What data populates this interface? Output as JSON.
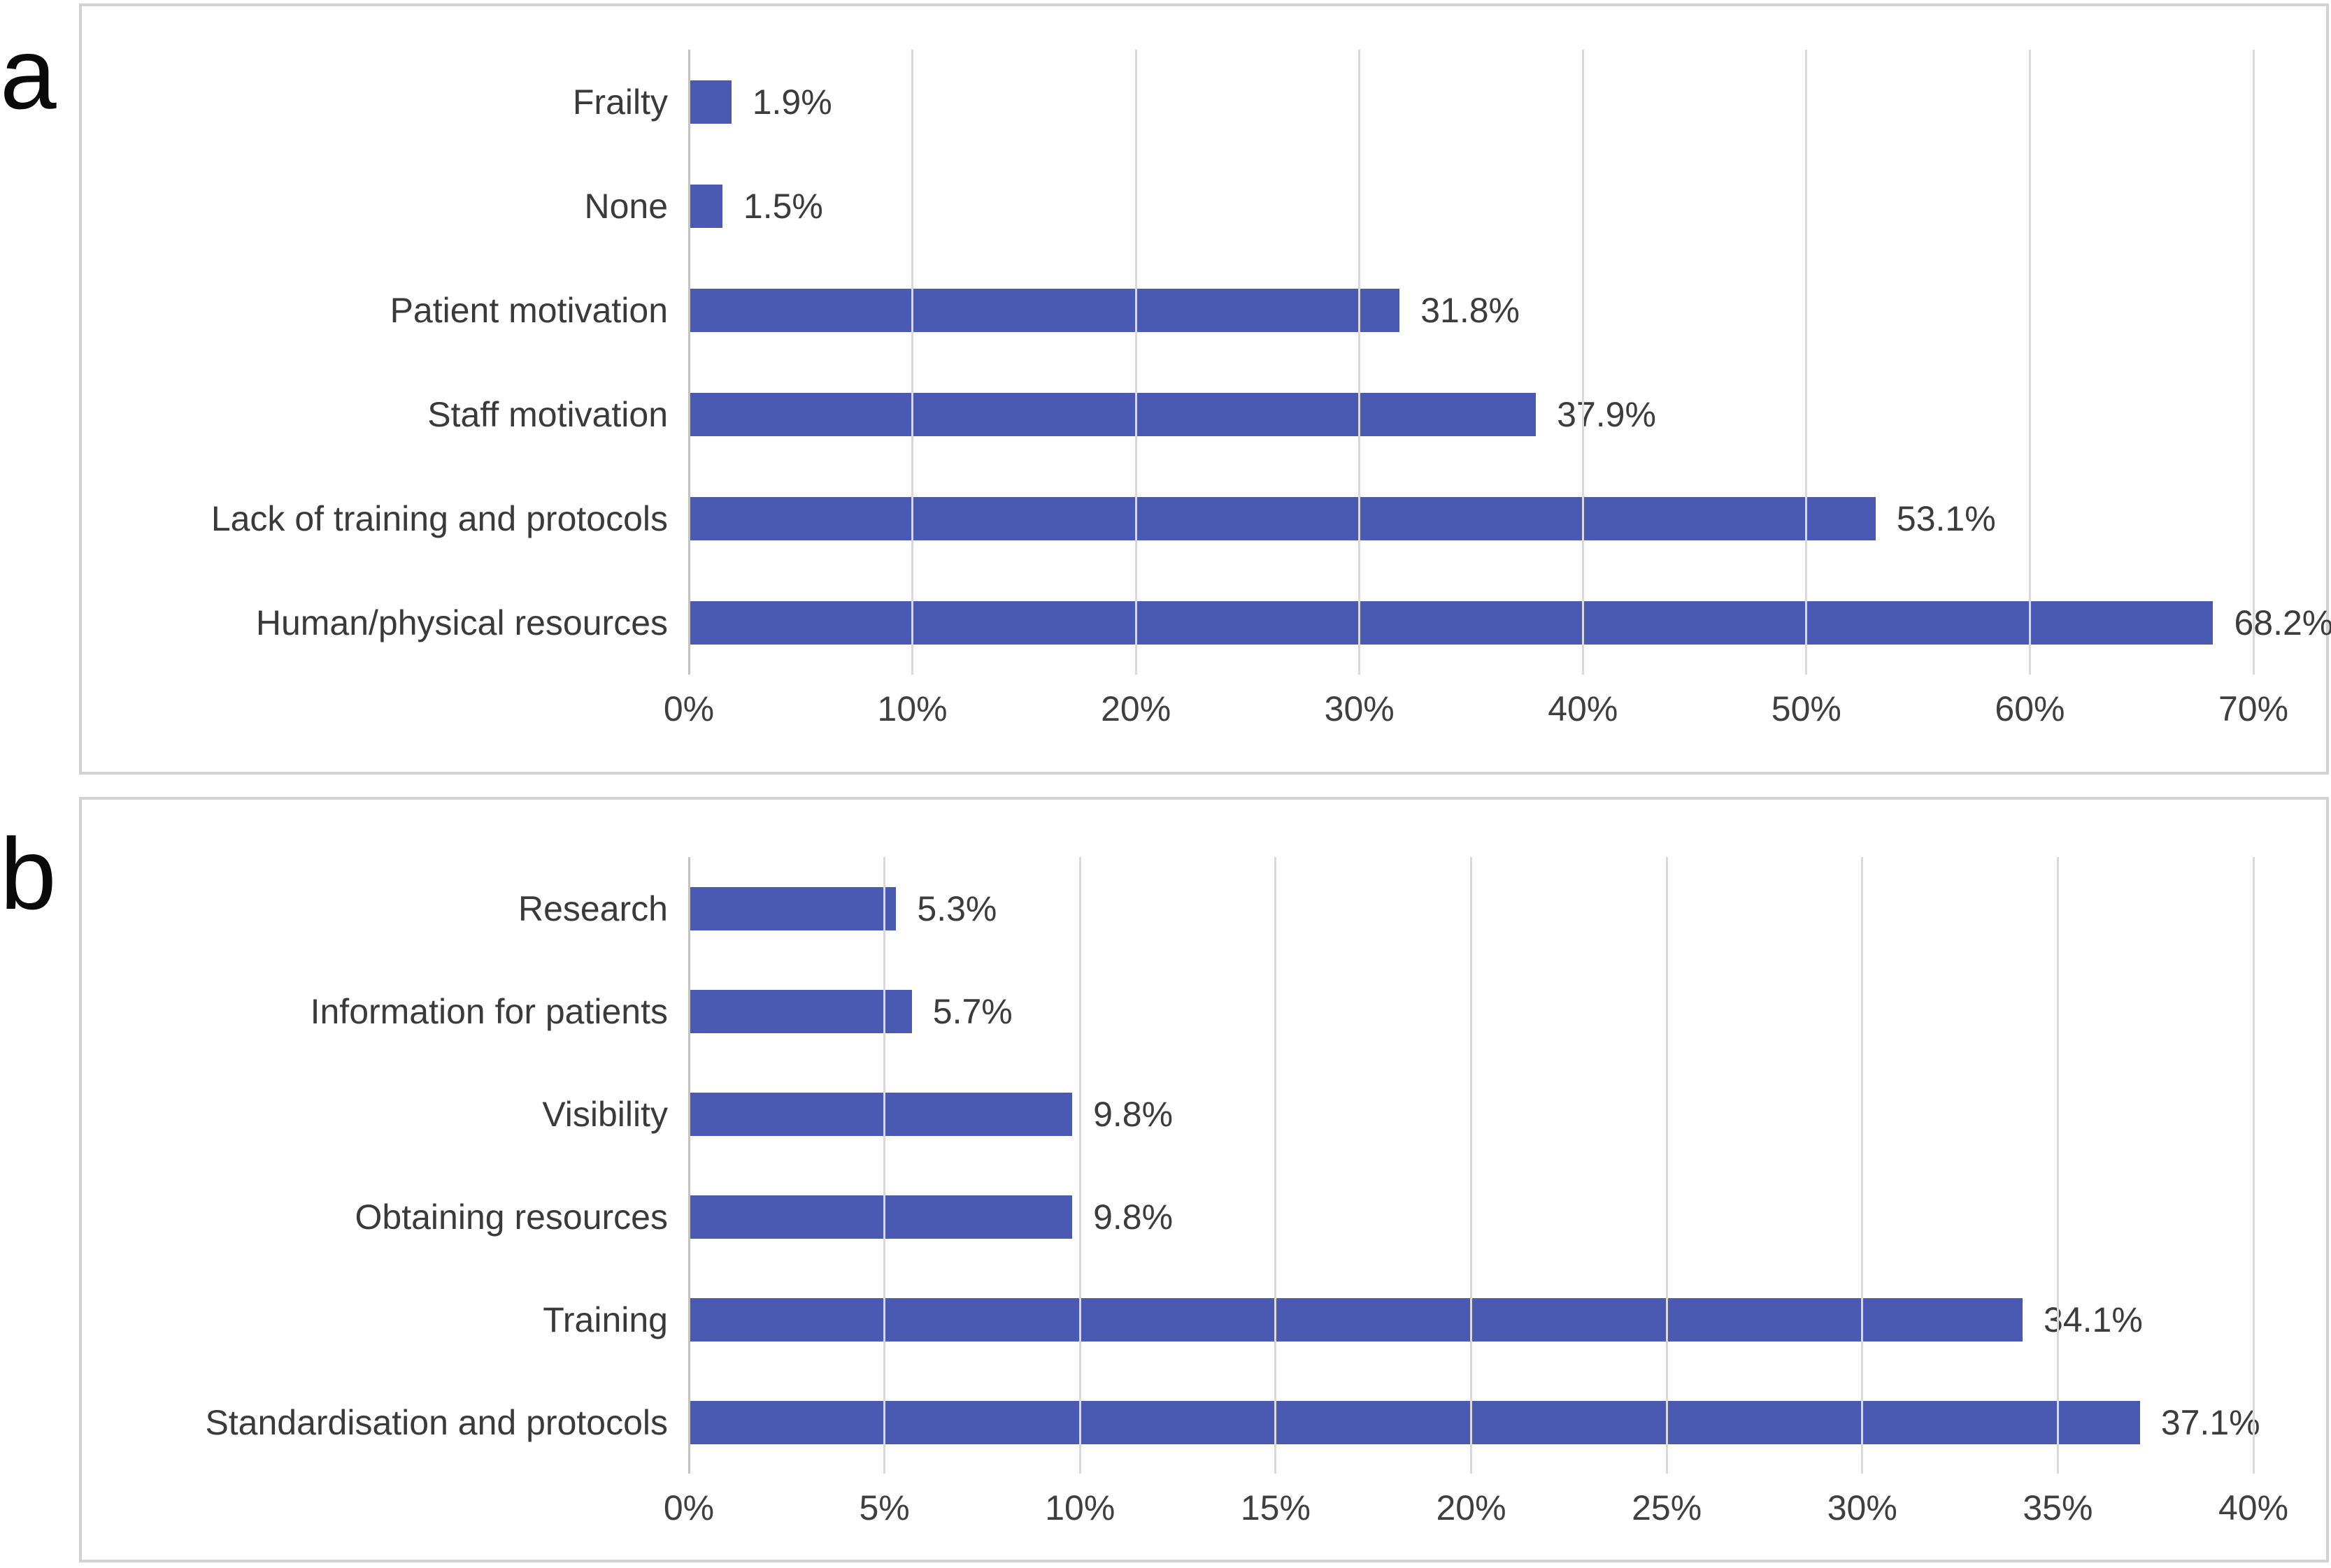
{
  "panels": [
    {
      "label": "a"
    },
    {
      "label": "b"
    }
  ],
  "chart_data": [
    {
      "type": "bar",
      "orientation": "horizontal",
      "panel_label": "a",
      "title": "",
      "xlabel": "",
      "ylabel": "",
      "categories": [
        "Frailty",
        "None",
        "Patient motivation",
        "Staff motivation",
        "Lack of training and protocols",
        "Human/physical resources"
      ],
      "values": [
        1.9,
        1.5,
        31.8,
        37.9,
        53.1,
        68.2
      ],
      "value_labels": [
        "1.9%",
        "1.5%",
        "31.8%",
        "37.9%",
        "53.1%",
        "68.2%"
      ],
      "xlim": [
        0,
        70
      ],
      "x_tick_values": [
        0,
        10,
        20,
        30,
        40,
        50,
        60,
        70
      ],
      "x_ticks": [
        "0%",
        "10%",
        "20%",
        "30%",
        "40%",
        "50%",
        "60%",
        "70%"
      ],
      "grid": true,
      "legend": false,
      "bar_color": "#4a5ab2"
    },
    {
      "type": "bar",
      "orientation": "horizontal",
      "panel_label": "b",
      "title": "",
      "xlabel": "",
      "ylabel": "",
      "categories": [
        "Research",
        "Information for patients",
        "Visibility",
        "Obtaining resources",
        "Training",
        "Standardisation and protocols"
      ],
      "values": [
        5.3,
        5.7,
        9.8,
        9.8,
        34.1,
        37.1
      ],
      "value_labels": [
        "5.3%",
        "5.7%",
        "9.8%",
        "9.8%",
        "34.1%",
        "37.1%"
      ],
      "xlim": [
        0,
        40
      ],
      "x_tick_values": [
        0,
        5,
        10,
        15,
        20,
        25,
        30,
        35,
        40
      ],
      "x_ticks": [
        "0%",
        "5%",
        "10%",
        "15%",
        "20%",
        "25%",
        "30%",
        "35%",
        "40%"
      ],
      "grid": true,
      "legend": false,
      "bar_color": "#4a5ab2"
    }
  ]
}
